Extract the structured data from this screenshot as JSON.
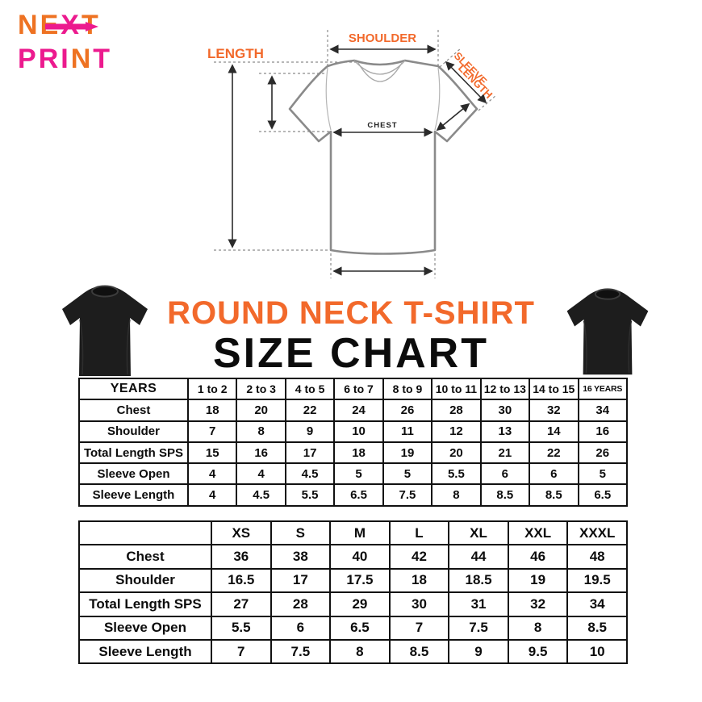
{
  "logo": {
    "next": [
      "N",
      "E",
      "X",
      "T"
    ],
    "print": [
      "P",
      "R",
      "I",
      "N",
      "T"
    ],
    "arrow_icon": "right-arrow"
  },
  "diagram": {
    "length_label": "LENGTH",
    "shoulder_label": "SHOULDER",
    "chest_label": "CHEST",
    "sleeve_label_line1": "SLEEVE",
    "sleeve_label_line2": "LENGTH"
  },
  "titles": {
    "product": "ROUND NECK T-SHIRT",
    "size_chart": "SIZE CHART"
  },
  "kids_table": {
    "header": [
      "YEARS",
      "1 to 2",
      "2 to 3",
      "4 to 5",
      "6 to 7",
      "8 to 9",
      "10 to 11",
      "12 to 13",
      "14 to 15",
      "16 YEARS"
    ],
    "rows": [
      {
        "label": "Chest",
        "values": [
          "18",
          "20",
          "22",
          "24",
          "26",
          "28",
          "30",
          "32",
          "34"
        ]
      },
      {
        "label": "Shoulder",
        "values": [
          "7",
          "8",
          "9",
          "10",
          "11",
          "12",
          "13",
          "14",
          "16"
        ]
      },
      {
        "label": "Total Length SPS",
        "values": [
          "15",
          "16",
          "17",
          "18",
          "19",
          "20",
          "21",
          "22",
          "26"
        ]
      },
      {
        "label": "Sleeve Open",
        "values": [
          "4",
          "4",
          "4.5",
          "5",
          "5",
          "5.5",
          "6",
          "6",
          "5"
        ]
      },
      {
        "label": "Sleeve Length",
        "values": [
          "4",
          "4.5",
          "5.5",
          "6.5",
          "7.5",
          "8",
          "8.5",
          "8.5",
          "6.5"
        ]
      }
    ]
  },
  "adult_table": {
    "header": [
      "",
      "XS",
      "S",
      "M",
      "L",
      "XL",
      "XXL",
      "XXXL"
    ],
    "rows": [
      {
        "label": "Chest",
        "values": [
          "36",
          "38",
          "40",
          "42",
          "44",
          "46",
          "48"
        ]
      },
      {
        "label": "Shoulder",
        "values": [
          "16.5",
          "17",
          "17.5",
          "18",
          "18.5",
          "19",
          "19.5"
        ]
      },
      {
        "label": "Total Length SPS",
        "values": [
          "27",
          "28",
          "29",
          "30",
          "31",
          "32",
          "34"
        ]
      },
      {
        "label": "Sleeve Open",
        "values": [
          "5.5",
          "6",
          "6.5",
          "7",
          "7.5",
          "8",
          "8.5"
        ]
      },
      {
        "label": "Sleeve Length",
        "values": [
          "7",
          "7.5",
          "8",
          "8.5",
          "9",
          "9.5",
          "10"
        ]
      }
    ]
  },
  "colors": {
    "accent_orange": "#f2692b",
    "brand_orange": "#ee7222",
    "brand_magenta": "#ec1a8e",
    "table_border": "#111111",
    "shirt_photo": "#1d1d1d",
    "diagram_outline": "#8a8a8a"
  }
}
